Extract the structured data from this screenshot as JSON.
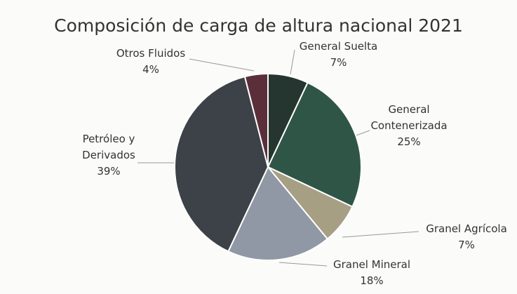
{
  "chart_data": {
    "type": "pie",
    "title": "Composición de carga de altura nacional 2021",
    "categories": [
      "General Suelta",
      "General Contenerizada",
      "Granel Agrícola",
      "Granel Mineral",
      "Petróleo y Derivados",
      "Otros Fluidos"
    ],
    "values": [
      7,
      25,
      7,
      18,
      39,
      4
    ],
    "value_labels": [
      "7%",
      "25%",
      "7%",
      "18%",
      "39%",
      "4%"
    ],
    "colors": [
      "#25352f",
      "#2f5546",
      "#a79f84",
      "#8f98a4",
      "#3c4247",
      "#5b2f3a"
    ]
  }
}
